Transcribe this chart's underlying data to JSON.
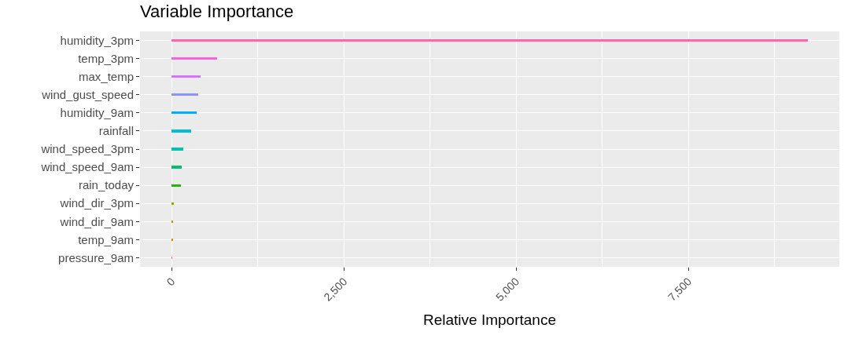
{
  "chart_data": {
    "type": "bar",
    "orientation": "horizontal",
    "title": "Variable Importance",
    "xlabel": "Relative Importance",
    "categories": [
      "humidity_3pm",
      "temp_3pm",
      "max_temp",
      "wind_gust_speed",
      "humidity_9am",
      "rainfall",
      "wind_speed_3pm",
      "wind_speed_9am",
      "rain_today",
      "wind_dir_3pm",
      "wind_dir_9am",
      "temp_9am",
      "pressure_9am"
    ],
    "values": [
      9230,
      660,
      421,
      387,
      364,
      284,
      171,
      148,
      137,
      34,
      23,
      12,
      5
    ],
    "colors": [
      "#ff65ac",
      "#f962dd",
      "#d575fe",
      "#8b93ff",
      "#00acfc",
      "#00bbda",
      "#00c1ab",
      "#00be70",
      "#24b700",
      "#8cab00",
      "#be9c00",
      "#e18a00",
      "#f8766d"
    ],
    "xlim": [
      -461,
      9692
    ],
    "xticks": [
      0,
      {
        "value": 2500,
        "label": "2,500"
      },
      {
        "value": 5000,
        "label": "5,000"
      },
      {
        "value": 7500,
        "label": "7,500"
      }
    ],
    "grid": true
  }
}
